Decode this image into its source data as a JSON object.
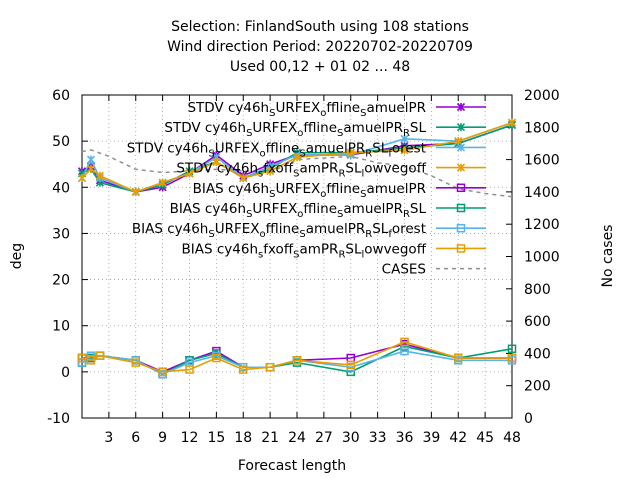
{
  "chart_data": {
    "type": "line",
    "title": [
      "Selection: FinlandSouth using    108 stations",
      "Wind direction   Period: 20220702-20220709",
      "Used  00,12  + 01 02 ... 48"
    ],
    "xlabel": "Forecast length",
    "ylabel": "deg",
    "y2label": "No cases",
    "xlim": [
      0,
      48
    ],
    "ylim": [
      -10,
      60
    ],
    "y2lim": [
      0,
      2000
    ],
    "xticks": [
      3,
      6,
      9,
      12,
      15,
      18,
      21,
      24,
      27,
      30,
      33,
      36,
      39,
      42,
      45,
      48
    ],
    "yticks": [
      -10,
      0,
      10,
      20,
      30,
      40,
      50,
      60
    ],
    "y2ticks": [
      0,
      200,
      400,
      600,
      800,
      1000,
      1200,
      1400,
      1600,
      1800,
      2000
    ],
    "grid": true,
    "legend_position": "top-right",
    "x": [
      0,
      1,
      2,
      6,
      9,
      12,
      15,
      18,
      21,
      24,
      30,
      36,
      42,
      48
    ],
    "series": [
      {
        "name": "STDV cy46h_S URFEX_o ffline_S amuelPR",
        "color": "#9400d3",
        "marker": "x",
        "values": [
          43.5,
          44.5,
          41.5,
          39.0,
          40.0,
          43.0,
          47.0,
          42.5,
          45.0,
          47.0,
          47.0,
          49.0,
          49.5,
          53.5
        ]
      },
      {
        "name": "STDV cy46h_S URFEX_o ffline_S amuelPR_R SL",
        "color": "#009e73",
        "marker": "x",
        "values": [
          43.0,
          44.0,
          41.0,
          39.0,
          40.5,
          43.5,
          45.5,
          42.0,
          44.0,
          47.5,
          47.5,
          48.5,
          49.5,
          53.5
        ]
      },
      {
        "name": "STDV cy46h_S URFEX_o ffline_S amuelPR_R SL_f orest",
        "color": "#56b4e9",
        "marker": "x",
        "values": [
          42.0,
          46.0,
          42.0,
          39.0,
          41.0,
          43.0,
          46.5,
          42.0,
          44.5,
          47.0,
          47.0,
          50.5,
          50.0,
          54.0
        ]
      },
      {
        "name": "STDV cy46h_s fxoff_S amPR_R SL_l owvegoff",
        "color": "#e69f00",
        "marker": "x",
        "values": [
          42.0,
          44.0,
          42.5,
          39.0,
          41.0,
          43.0,
          45.5,
          42.0,
          43.5,
          46.5,
          47.5,
          48.0,
          50.0,
          54.0
        ]
      },
      {
        "name": "BIAS cy46h_S URFEX_o ffline_S amuelPR",
        "color": "#9400d3",
        "marker": "square",
        "values": [
          3.0,
          3.0,
          3.5,
          2.5,
          0.0,
          2.5,
          4.5,
          1.0,
          1.0,
          2.5,
          3.0,
          6.0,
          3.0,
          3.0
        ]
      },
      {
        "name": "BIAS cy46h_S URFEX_o ffline_S amuelPR_R SL",
        "color": "#009e73",
        "marker": "square",
        "values": [
          2.0,
          3.0,
          3.5,
          2.5,
          -0.5,
          2.5,
          4.0,
          1.0,
          1.0,
          2.0,
          0.0,
          5.5,
          3.0,
          5.0
        ]
      },
      {
        "name": "BIAS cy46h_S URFEX_o ffline_S amuelPR_R SL_f orest",
        "color": "#56b4e9",
        "marker": "square",
        "values": [
          2.0,
          3.5,
          3.5,
          2.5,
          -0.5,
          2.0,
          3.5,
          1.0,
          1.0,
          2.5,
          1.0,
          4.5,
          2.5,
          2.5
        ]
      },
      {
        "name": "BIAS cy46h_s fxoff_S amPR_R SL_l owvegoff",
        "color": "#e69f00",
        "marker": "square",
        "values": [
          3.0,
          2.5,
          3.5,
          2.0,
          0.0,
          0.5,
          3.0,
          0.5,
          1.0,
          2.5,
          1.5,
          6.5,
          3.0,
          3.0
        ]
      }
    ],
    "cases": {
      "name": "CASES",
      "color": "#909090",
      "axis": "y2",
      "x": [
        0,
        1,
        2,
        3,
        6,
        9,
        12,
        15,
        18,
        21,
        24,
        30,
        33,
        36,
        39,
        42,
        45,
        48
      ],
      "values": [
        1650,
        1660,
        1640,
        1620,
        1540,
        1520,
        1530,
        1540,
        1530,
        1520,
        1600,
        1620,
        1580,
        1560,
        1500,
        1420,
        1390,
        1370
      ]
    },
    "legend_labels": [
      {
        "parts": [
          [
            "STDV cy46h",
            ""
          ],
          [
            "S",
            "sub"
          ],
          [
            "URFEX",
            ""
          ],
          [
            "o",
            "sub"
          ],
          [
            "ffline",
            ""
          ],
          [
            "S",
            "sub"
          ],
          [
            "amuelPR",
            ""
          ]
        ]
      },
      {
        "parts": [
          [
            "STDV cy46h",
            ""
          ],
          [
            "S",
            "sub"
          ],
          [
            "URFEX",
            ""
          ],
          [
            "o",
            "sub"
          ],
          [
            "ffline",
            ""
          ],
          [
            "S",
            "sub"
          ],
          [
            "amuelPR",
            ""
          ],
          [
            "R",
            "sub"
          ],
          [
            "SL",
            ""
          ]
        ]
      },
      {
        "parts": [
          [
            "STDV cy46h",
            ""
          ],
          [
            "S",
            "sub"
          ],
          [
            "URFEX",
            ""
          ],
          [
            "o",
            "sub"
          ],
          [
            "ffline",
            ""
          ],
          [
            "S",
            "sub"
          ],
          [
            "amuelPR",
            ""
          ],
          [
            "R",
            "sub"
          ],
          [
            "SL",
            ""
          ],
          [
            "f",
            "sub"
          ],
          [
            "orest",
            ""
          ]
        ]
      },
      {
        "parts": [
          [
            "STDV cy46h",
            ""
          ],
          [
            "s",
            "sub"
          ],
          [
            "fxoff",
            ""
          ],
          [
            "S",
            "sub"
          ],
          [
            "amPR",
            ""
          ],
          [
            "R",
            "sub"
          ],
          [
            "SL",
            ""
          ],
          [
            "l",
            "sub"
          ],
          [
            "owvegoff",
            ""
          ]
        ]
      },
      {
        "parts": [
          [
            "BIAS cy46h",
            ""
          ],
          [
            "S",
            "sub"
          ],
          [
            "URFEX",
            ""
          ],
          [
            "o",
            "sub"
          ],
          [
            "ffline",
            ""
          ],
          [
            "S",
            "sub"
          ],
          [
            "amuelPR",
            ""
          ]
        ]
      },
      {
        "parts": [
          [
            "BIAS cy46h",
            ""
          ],
          [
            "S",
            "sub"
          ],
          [
            "URFEX",
            ""
          ],
          [
            "o",
            "sub"
          ],
          [
            "ffline",
            ""
          ],
          [
            "S",
            "sub"
          ],
          [
            "amuelPR",
            ""
          ],
          [
            "R",
            "sub"
          ],
          [
            "SL",
            ""
          ]
        ]
      },
      {
        "parts": [
          [
            "BIAS cy46h",
            ""
          ],
          [
            "S",
            "sub"
          ],
          [
            "URFEX",
            ""
          ],
          [
            "o",
            "sub"
          ],
          [
            "ffline",
            ""
          ],
          [
            "S",
            "sub"
          ],
          [
            "amuelPR",
            ""
          ],
          [
            "R",
            "sub"
          ],
          [
            "SL",
            ""
          ],
          [
            "f",
            "sub"
          ],
          [
            "orest",
            ""
          ]
        ]
      },
      {
        "parts": [
          [
            "BIAS cy46h",
            ""
          ],
          [
            "s",
            "sub"
          ],
          [
            "fxoff",
            ""
          ],
          [
            "S",
            "sub"
          ],
          [
            "amPR",
            ""
          ],
          [
            "R",
            "sub"
          ],
          [
            "SL",
            ""
          ],
          [
            "l",
            "sub"
          ],
          [
            "owvegoff",
            ""
          ]
        ]
      },
      {
        "parts": [
          [
            "CASES",
            ""
          ]
        ]
      }
    ]
  }
}
